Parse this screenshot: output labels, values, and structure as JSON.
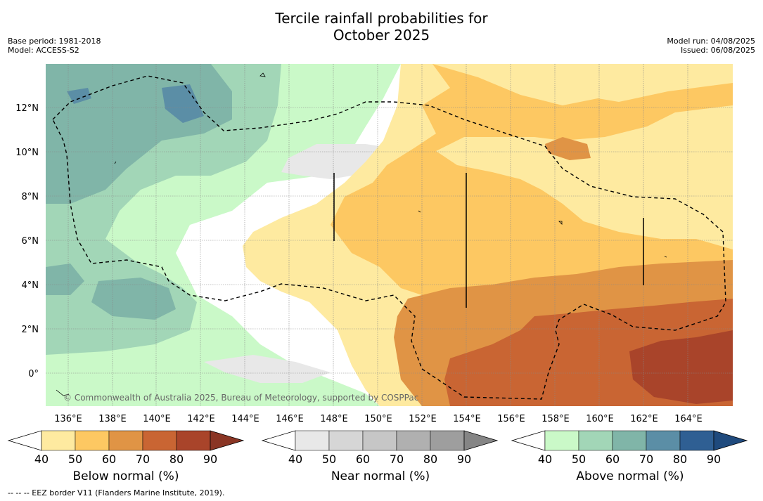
{
  "header": {
    "title_line1": "Tercile rainfall probabilities for",
    "title_line2": "October 2025",
    "base_period": "Base period: 1981-2018",
    "model": "Model: ACCESS-S2",
    "model_run": "Model run: 04/08/2025",
    "issued": "Issued: 06/08/2025"
  },
  "map": {
    "x_ticks": [
      "136°E",
      "138°E",
      "140°E",
      "142°E",
      "144°E",
      "146°E",
      "148°E",
      "150°E",
      "152°E",
      "154°E",
      "156°E",
      "158°E",
      "160°E",
      "162°E",
      "164°E"
    ],
    "y_ticks": [
      "12°N",
      "10°N",
      "8°N",
      "6°N",
      "4°N",
      "2°N",
      "0°"
    ],
    "credit": "© Commonwealth of Australia 2025, Bureau of Meteorology, supported by COSPPac"
  },
  "legend": {
    "below": {
      "label": "Below normal (%)",
      "ticks": [
        "40",
        "50",
        "60",
        "70",
        "80",
        "90"
      ],
      "colors": [
        "#ffffff",
        "#feeaa0",
        "#fdc862",
        "#e09445",
        "#c96533",
        "#a9442a",
        "#8a3524"
      ]
    },
    "near": {
      "label": "Near normal (%)",
      "ticks": [
        "40",
        "50",
        "60",
        "70",
        "80",
        "90"
      ],
      "colors": [
        "#ffffff",
        "#e8e8e8",
        "#d6d6d6",
        "#c6c6c6",
        "#b0b0b0",
        "#9e9e9e",
        "#858585"
      ]
    },
    "above": {
      "label": "Above normal (%)",
      "ticks": [
        "40",
        "50",
        "60",
        "70",
        "80",
        "90"
      ],
      "colors": [
        "#ffffff",
        "#caf9c8",
        "#a2d6b7",
        "#80b5a8",
        "#5b8ea6",
        "#2f5f93",
        "#1f4a7d"
      ]
    }
  },
  "footnote": "--  --  -- EEZ border V11 (Flanders Marine Institute, 2019)."
}
